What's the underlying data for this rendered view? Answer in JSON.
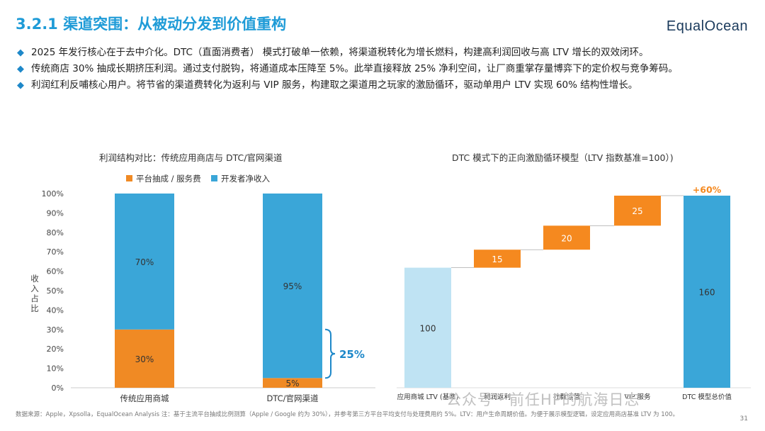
{
  "header": {
    "title": "3.2.1 渠道突围：从被动分发到价值重构",
    "logo": "EqualOcean"
  },
  "bullets": [
    "2025 年发行核心在于去中介化。DTC（直面消费者） 模式打破单一依赖，将渠道税转化为增长燃料，构建高利润回收与高 LTV 增长的双效闭环。",
    "传统商店 30% 抽成长期挤压利润。通过支付脱钩，将通道成本压降至 5%。此举直接释放 25% 净利空间，让厂商重掌存量博弈下的定价权与竞争筹码。",
    "利润红利反哺核心用户。将节省的渠道费转化为返利与 VIP 服务，构建取之渠道用之玩家的激励循环，驱动单用户 LTV 实现 60% 结构性增长。"
  ],
  "chart_data": [
    {
      "type": "bar",
      "stacked": true,
      "title": "利润结构对比：传统应用商店与 DTC/官网渠道",
      "categories": [
        "传统应用商城",
        "DTC/官网渠道"
      ],
      "series": [
        {
          "name": "平台抽成 / 服务费",
          "values": [
            30,
            5
          ],
          "labels": [
            "30%",
            "5%"
          ],
          "color": "#f08a24"
        },
        {
          "name": "开发者净收入",
          "values": [
            70,
            95
          ],
          "labels": [
            "70%",
            "95%"
          ],
          "color": "#3aa6d8"
        }
      ],
      "ylabel": "收入占比",
      "ylim": [
        0,
        100
      ],
      "yticks": [
        "0%",
        "10%",
        "20%",
        "30%",
        "40%",
        "50%",
        "60%",
        "70%",
        "80%",
        "90%",
        "100%"
      ],
      "annotation": "25%",
      "annotation_color": "#1e88c9"
    },
    {
      "type": "waterfall",
      "title": "DTC 模式下的正向激励循环模型（LTV 指数基准=100）)",
      "categories": [
        "应用商城 LTV (基准)",
        "利润返利",
        "社群运营",
        "VIP 服务",
        "DTC 模型总价值"
      ],
      "values": [
        100,
        15,
        20,
        25,
        160
      ],
      "kinds": [
        "base",
        "delta",
        "delta",
        "delta",
        "total"
      ],
      "labels": [
        "100",
        "15",
        "20",
        "25",
        "160"
      ],
      "colors": {
        "base": "#bfe3f3",
        "delta": "#f5891f",
        "total": "#3aa6d8"
      },
      "total_annotation": "+60%",
      "total_annotation_color": "#f5891f",
      "ylim": [
        0,
        160
      ]
    }
  ],
  "footer": {
    "source": "数据来源：Apple，Xpsolla，EqualOcean Analysis 注：基于主流平台抽成比例测算（Apple / Google 约为 30%），并参考第三方平台平均支付与处理费用约 5%。LTV：用户生命周期价值。为便于展示模型逻辑，设定应用商店基准 LTV 为 100。",
    "page": "31",
    "watermark": "公众号 · 前任HP的航海日志"
  }
}
